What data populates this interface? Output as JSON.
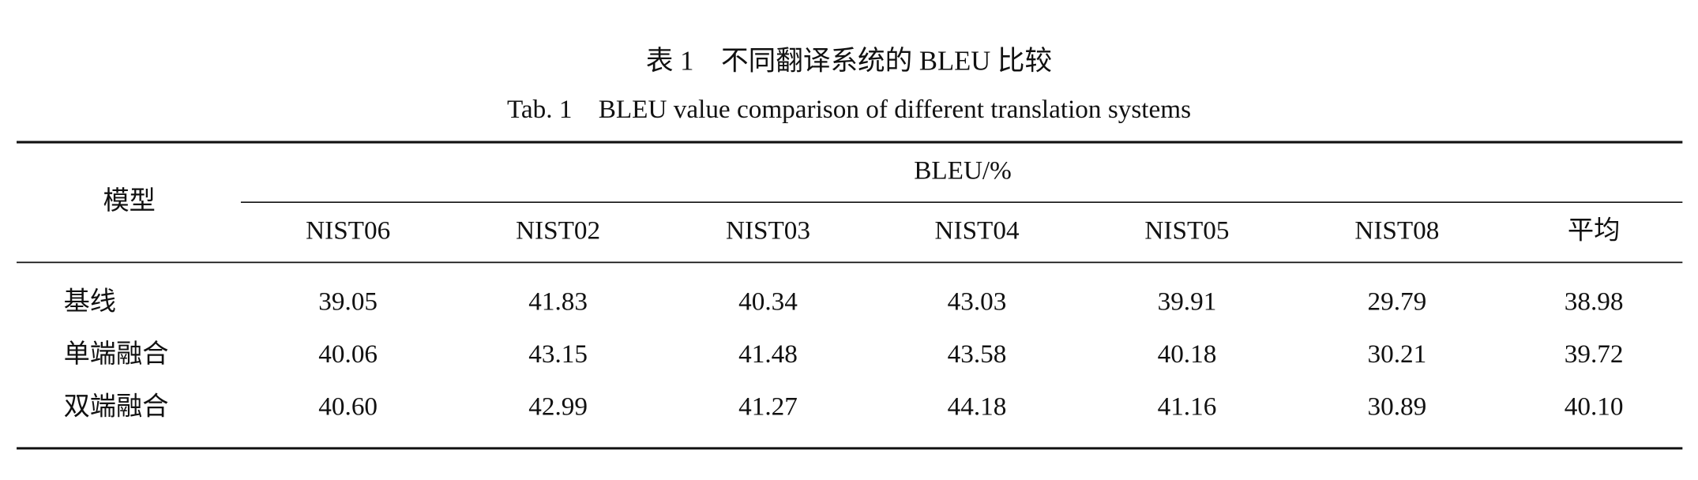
{
  "title": "表 1　不同翻译系统的 BLEU 比较",
  "subtitle": "Tab. 1　BLEU value comparison of different translation systems",
  "table": {
    "row_header": "模型",
    "group_header": "BLEU/%",
    "columns": [
      "NIST06",
      "NIST02",
      "NIST03",
      "NIST04",
      "NIST05",
      "NIST08",
      "平均"
    ],
    "rows": [
      {
        "label": "基线",
        "values": [
          "39.05",
          "41.83",
          "40.34",
          "43.03",
          "39.91",
          "29.79",
          "38.98"
        ]
      },
      {
        "label": "单端融合",
        "values": [
          "40.06",
          "43.15",
          "41.48",
          "43.58",
          "40.18",
          "30.21",
          "39.72"
        ]
      },
      {
        "label": "双端融合",
        "values": [
          "40.60",
          "42.99",
          "41.27",
          "44.18",
          "41.16",
          "30.89",
          "40.10"
        ]
      }
    ]
  }
}
